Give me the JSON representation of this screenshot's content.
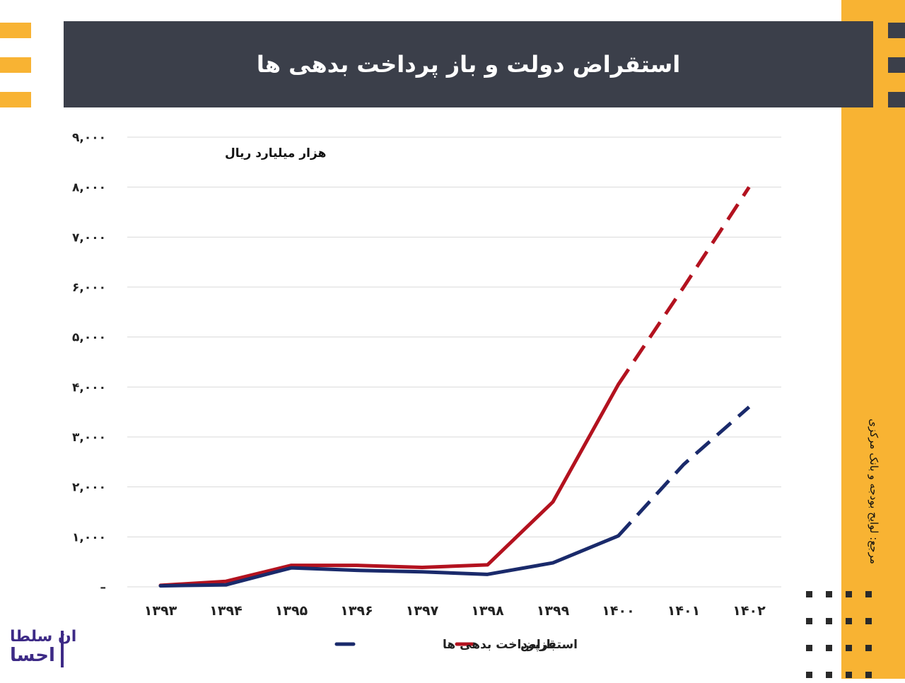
{
  "header": {
    "title": "استقراض دولت و باز پرداخت بدهی ها"
  },
  "source": "مرجع: لوایح بودجه و بانک مرکزی",
  "logo": {
    "line1": "ان سلطا",
    "line2": "احسا"
  },
  "colors": {
    "accent": "#f8b333",
    "header_bg": "#3b3f4a",
    "borrowing": "#b3121f",
    "repayment": "#1a2a6b"
  },
  "chart_data": {
    "type": "line",
    "unit_label": "هزار میلیارد ریال",
    "categories": [
      "۱۳۹۳",
      "۱۳۹۴",
      "۱۳۹۵",
      "۱۳۹۶",
      "۱۳۹۷",
      "۱۳۹۸",
      "۱۳۹۹",
      "۱۴۰۰",
      "۱۴۰۱",
      "۱۴۰۲"
    ],
    "y_ticks": [
      {
        "value": 0,
        "label": "–"
      },
      {
        "value": 1000,
        "label": "۱,۰۰۰"
      },
      {
        "value": 2000,
        "label": "۲,۰۰۰"
      },
      {
        "value": 3000,
        "label": "۳,۰۰۰"
      },
      {
        "value": 4000,
        "label": "۴,۰۰۰"
      },
      {
        "value": 5000,
        "label": "۵,۰۰۰"
      },
      {
        "value": 6000,
        "label": "۶,۰۰۰"
      },
      {
        "value": 7000,
        "label": "۷,۰۰۰"
      },
      {
        "value": 8000,
        "label": "۸,۰۰۰"
      },
      {
        "value": 9000,
        "label": "۹,۰۰۰"
      }
    ],
    "ylim": [
      0,
      9000
    ],
    "grid": true,
    "legend_position": "bottom",
    "dashed_from_index": 7,
    "series": [
      {
        "name": "استقراض",
        "color": "#b3121f",
        "values": [
          30,
          110,
          430,
          430,
          390,
          440,
          1700,
          4050,
          6000,
          8000
        ]
      },
      {
        "name": "بازپرداخت بدهی ها",
        "color": "#1a2a6b",
        "values": [
          20,
          40,
          380,
          330,
          300,
          250,
          480,
          1020,
          2450,
          3600
        ]
      }
    ]
  }
}
